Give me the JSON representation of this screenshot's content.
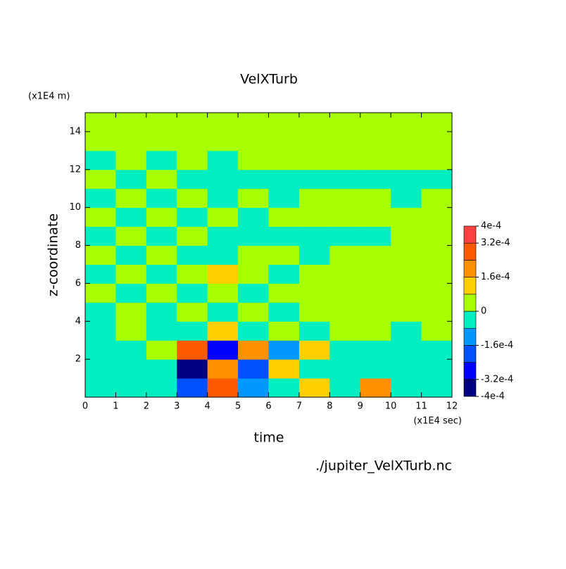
{
  "chart_data": {
    "type": "contour",
    "title": "VelXTurb",
    "x_label": "time",
    "x_unit": "(x1E4 sec)",
    "y_label": "z-coordinate",
    "y_unit": "(x1E4 m)",
    "footer": "./jupiter_VelXTurb.nc",
    "xlim": [
      0,
      12
    ],
    "xticks": [
      0,
      1,
      2,
      3,
      4,
      5,
      6,
      7,
      8,
      9,
      10,
      11,
      12
    ],
    "ylim": [
      0,
      15
    ],
    "yticks": [
      2,
      4,
      6,
      8,
      10,
      12,
      14
    ],
    "x": [
      0,
      1,
      2,
      3,
      4,
      5,
      6,
      7,
      8,
      9,
      10,
      11,
      12
    ],
    "y": [
      0,
      1,
      2,
      3,
      4,
      5,
      6,
      7,
      8,
      9,
      10,
      11,
      12,
      13,
      14,
      15
    ],
    "z": [
      [
        -5e-05,
        -5e-05,
        -5e-05,
        -0.0002,
        0.00028,
        -0.00012,
        -5e-05,
        0.00012,
        -5e-05,
        0.0002,
        -5e-05,
        -5e-05
      ],
      [
        -5e-05,
        -5e-05,
        -5e-05,
        -0.00035,
        0.0002,
        -0.00018,
        0.00012,
        -5e-05,
        -5e-05,
        -5e-05,
        -5e-05,
        -5e-05
      ],
      [
        -5e-05,
        -5e-05,
        2e-05,
        0.0003,
        -0.00025,
        0.00018,
        -0.00012,
        0.00012,
        -5e-05,
        -5e-05,
        -5e-05,
        -5e-05
      ],
      [
        -5e-05,
        2e-05,
        -5e-05,
        -5e-05,
        0.00012,
        -5e-05,
        2e-05,
        -5e-05,
        2e-05,
        2e-05,
        -5e-05,
        2e-05
      ],
      [
        -5e-05,
        2e-05,
        -5e-05,
        2e-05,
        -5e-05,
        2e-05,
        -5e-05,
        2e-05,
        2e-05,
        2e-05,
        2e-05,
        2e-05
      ],
      [
        2e-05,
        -5e-05,
        2e-05,
        -5e-05,
        2e-05,
        -5e-05,
        2e-05,
        2e-05,
        2e-05,
        2e-05,
        2e-05,
        2e-05
      ],
      [
        -5e-05,
        2e-05,
        -5e-05,
        2e-05,
        0.00012,
        2e-05,
        -5e-05,
        2e-05,
        2e-05,
        2e-05,
        2e-05,
        2e-05
      ],
      [
        2e-05,
        -5e-05,
        2e-05,
        -5e-05,
        -5e-05,
        2e-05,
        2e-05,
        -5e-05,
        2e-05,
        2e-05,
        2e-05,
        2e-05
      ],
      [
        -5e-05,
        2e-05,
        -5e-05,
        2e-05,
        -5e-05,
        -5e-05,
        -5e-05,
        -5e-05,
        -5e-05,
        -5e-05,
        2e-05,
        2e-05
      ],
      [
        2e-05,
        -5e-05,
        2e-05,
        -5e-05,
        2e-05,
        -5e-05,
        2e-05,
        2e-05,
        2e-05,
        2e-05,
        2e-05,
        2e-05
      ],
      [
        -5e-05,
        2e-05,
        -5e-05,
        2e-05,
        -5e-05,
        2e-05,
        -5e-05,
        2e-05,
        2e-05,
        2e-05,
        -5e-05,
        2e-05
      ],
      [
        2e-05,
        -5e-05,
        2e-05,
        -5e-05,
        -5e-05,
        -5e-05,
        -5e-05,
        -5e-05,
        -5e-05,
        -5e-05,
        -5e-05,
        -5e-05
      ],
      [
        -5e-05,
        2e-05,
        -5e-05,
        2e-05,
        -5e-05,
        2e-05,
        2e-05,
        2e-05,
        2e-05,
        2e-05,
        2e-05,
        2e-05
      ],
      [
        2e-05,
        2e-05,
        2e-05,
        2e-05,
        2e-05,
        2e-05,
        2e-05,
        2e-05,
        2e-05,
        2e-05,
        2e-05,
        2e-05
      ],
      [
        2e-05,
        2e-05,
        2e-05,
        2e-05,
        2e-05,
        2e-05,
        2e-05,
        2e-05,
        2e-05,
        2e-05,
        2e-05,
        2e-05
      ]
    ],
    "levels": [
      -0.0004,
      -0.00032,
      -0.00024,
      -0.00016,
      -8e-05,
      0,
      8e-05,
      0.00016,
      0.00024,
      0.00032,
      0.0004
    ],
    "colors": [
      "#000080",
      "#0000ff",
      "#0050ff",
      "#0098ff",
      "#00eec0",
      "#a8ff00",
      "#ffd000",
      "#ff9000",
      "#ff5a00",
      "#ff4040"
    ],
    "colorbar_ticks": [
      {
        "value": 0.0004,
        "label": "4e-4"
      },
      {
        "value": 0.00032,
        "label": "3.2e-4"
      },
      {
        "value": 0.00016,
        "label": "1.6e-4"
      },
      0,
      {
        "value": -0.00016,
        "label": "-1.6e-4"
      },
      {
        "value": -0.00032,
        "label": "-3.2e-4"
      },
      {
        "value": -0.0004,
        "label": "-4e-4"
      }
    ]
  }
}
